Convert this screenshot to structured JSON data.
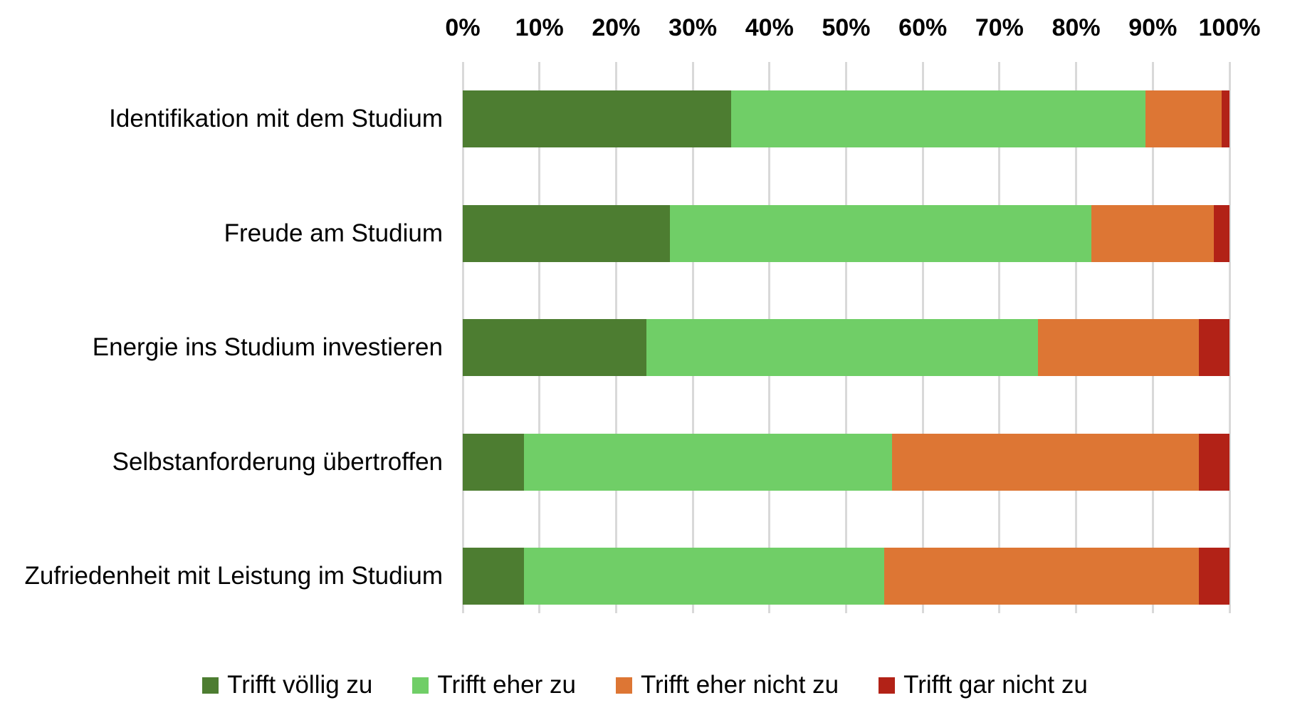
{
  "chart_data": {
    "type": "bar",
    "orientation": "horizontal",
    "stacked": true,
    "stacked_total": 100,
    "title": "",
    "xlabel": "",
    "ylabel": "",
    "xlim": [
      0,
      100
    ],
    "x_ticks": [
      "0%",
      "10%",
      "20%",
      "30%",
      "40%",
      "50%",
      "60%",
      "70%",
      "80%",
      "90%",
      "100%"
    ],
    "grid": true,
    "gridline_color": "#d9d9d9",
    "legend_position": "bottom",
    "categories": [
      "Identifikation mit dem Studium",
      "Freude am Studium",
      "Energie ins Studium investieren",
      "Selbstanforderung übertroffen",
      "Zufriedenheit mit Leistung im Studium"
    ],
    "series": [
      {
        "name": "Trifft völlig zu",
        "color": "#4d7d31",
        "values": [
          35,
          27,
          24,
          8,
          8
        ]
      },
      {
        "name": "Trifft eher zu",
        "color": "#70ce67",
        "values": [
          54,
          55,
          51,
          48,
          47
        ]
      },
      {
        "name": "Trifft eher nicht zu",
        "color": "#dd7634",
        "values": [
          10,
          16,
          21,
          40,
          41
        ]
      },
      {
        "name": "Trifft gar nicht zu",
        "color": "#b22217",
        "values": [
          1,
          2,
          4,
          4,
          4
        ]
      }
    ]
  }
}
